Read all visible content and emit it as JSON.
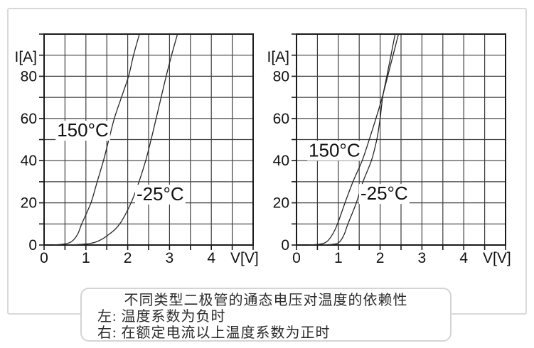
{
  "colors": {
    "background": "#ffffff",
    "frame_gray": "#d9d9d9",
    "grid": "#3d3d3d",
    "axis": "#1a1a1a",
    "curve": "#262626",
    "text": "#111111"
  },
  "chart_data": [
    {
      "id": "left-diode-chart",
      "type": "line",
      "title": "",
      "xlabel": "V[V]",
      "ylabel": "I[A]",
      "xlim": [
        0,
        5
      ],
      "ylim": [
        0,
        100
      ],
      "x_ticks": [
        0,
        1,
        2,
        3,
        4
      ],
      "y_ticks": [
        0,
        20,
        40,
        60,
        80
      ],
      "grid": {
        "x_step": 0.5,
        "y_step": 10,
        "visible": true
      },
      "legend_position": "inline-labels",
      "series": [
        {
          "name": "150°C",
          "label_anchor": {
            "x": 0.31,
            "y": 51.5
          },
          "points": [
            [
              0.22,
              0
            ],
            [
              0.45,
              0.4
            ],
            [
              0.65,
              1.5
            ],
            [
              0.8,
              5
            ],
            [
              0.9,
              10
            ],
            [
              1.12,
              20
            ],
            [
              1.27,
              30
            ],
            [
              1.42,
              40
            ],
            [
              1.55,
              50
            ],
            [
              1.68,
              60
            ],
            [
              1.85,
              70
            ],
            [
              2.02,
              80
            ],
            [
              2.14,
              90
            ],
            [
              2.28,
              100
            ],
            [
              2.34,
              104
            ]
          ]
        },
        {
          "name": "-25°C",
          "label_anchor": {
            "x": 2.21,
            "y": 21.2
          },
          "points": [
            [
              0.6,
              0
            ],
            [
              0.95,
              0.4
            ],
            [
              1.25,
              1.5
            ],
            [
              1.55,
              5
            ],
            [
              1.81,
              10
            ],
            [
              2.08,
              20
            ],
            [
              2.27,
              30
            ],
            [
              2.43,
              40
            ],
            [
              2.56,
              50
            ],
            [
              2.68,
              60
            ],
            [
              2.8,
              70
            ],
            [
              2.92,
              80
            ],
            [
              3.05,
              90
            ],
            [
              3.19,
              100
            ],
            [
              3.25,
              104
            ]
          ]
        }
      ]
    },
    {
      "id": "right-diode-chart",
      "type": "line",
      "title": "",
      "xlabel": "V[V]",
      "ylabel": "I[A]",
      "xlim": [
        0,
        5
      ],
      "ylim": [
        0,
        100
      ],
      "x_ticks": [
        0,
        1,
        2,
        3,
        4
      ],
      "y_ticks": [
        0,
        20,
        40,
        60,
        80
      ],
      "grid": {
        "x_step": 0.5,
        "y_step": 10,
        "visible": true
      },
      "legend_position": "inline-labels",
      "series": [
        {
          "name": "150°C",
          "label_anchor": {
            "x": 0.29,
            "y": 42
          },
          "points": [
            [
              0.3,
              0
            ],
            [
              0.55,
              0.4
            ],
            [
              0.72,
              1.5
            ],
            [
              0.86,
              5
            ],
            [
              0.98,
              10
            ],
            [
              1.16,
              20
            ],
            [
              1.35,
              30
            ],
            [
              1.57,
              40
            ],
            [
              1.74,
              50
            ],
            [
              1.9,
              60
            ],
            [
              2.05,
              70
            ],
            [
              2.18,
              80
            ],
            [
              2.31,
              90
            ],
            [
              2.44,
              100
            ],
            [
              2.5,
              104
            ]
          ]
        },
        {
          "name": "-25°C",
          "label_anchor": {
            "x": 1.53,
            "y": 21.5
          },
          "points": [
            [
              0.62,
              0
            ],
            [
              0.9,
              0.4
            ],
            [
              1.03,
              1.5
            ],
            [
              1.14,
              5
            ],
            [
              1.23,
              10
            ],
            [
              1.43,
              20
            ],
            [
              1.59,
              30
            ],
            [
              1.79,
              40
            ],
            [
              1.92,
              50
            ],
            [
              2.0,
              60
            ],
            [
              2.06,
              70
            ],
            [
              2.16,
              80
            ],
            [
              2.26,
              90
            ],
            [
              2.36,
              100
            ],
            [
              2.41,
              104
            ]
          ]
        }
      ]
    }
  ],
  "caption": {
    "lines": [
      "不同类型二极管的通态电压对温度的依赖性",
      "左: 温度系数为负时",
      "右: 在额定电流以上温度系数为正时"
    ]
  }
}
